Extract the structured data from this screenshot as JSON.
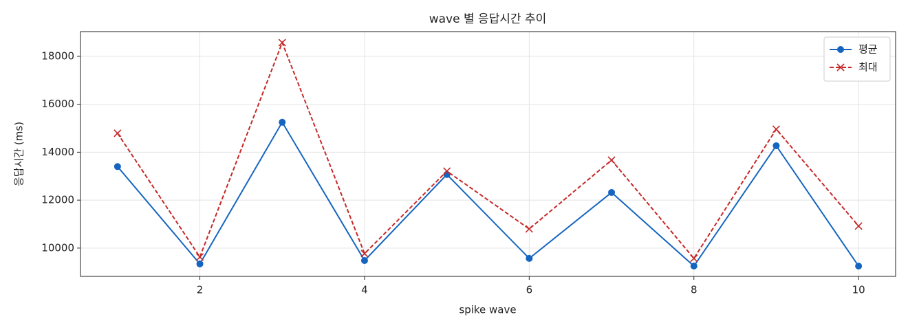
{
  "chart_data": {
    "type": "line",
    "title": "wave 별 응답시간 추이",
    "xlabel": "spike wave",
    "ylabel": "응답시간 (ms)",
    "x": [
      1,
      2,
      3,
      4,
      5,
      6,
      7,
      8,
      9,
      10
    ],
    "series": [
      {
        "name": "평균",
        "color": "#1565c0",
        "linestyle": "solid",
        "marker": "circle",
        "values": [
          13400,
          9340,
          15250,
          9480,
          13070,
          9570,
          12320,
          9250,
          14270,
          9250
        ]
      },
      {
        "name": "최대",
        "color": "#c62828",
        "linestyle": "dashed",
        "marker": "x",
        "values": [
          14790,
          9630,
          18570,
          9770,
          13210,
          10800,
          13670,
          9570,
          14960,
          10920
        ]
      }
    ],
    "xlim": [
      0.55,
      10.45
    ],
    "xticks": [
      2,
      4,
      6,
      8,
      10
    ],
    "ylim": [
      8820,
      19030
    ],
    "yticks": [
      10000,
      12000,
      14000,
      16000,
      18000
    ],
    "grid": true,
    "legend": "upper right"
  }
}
